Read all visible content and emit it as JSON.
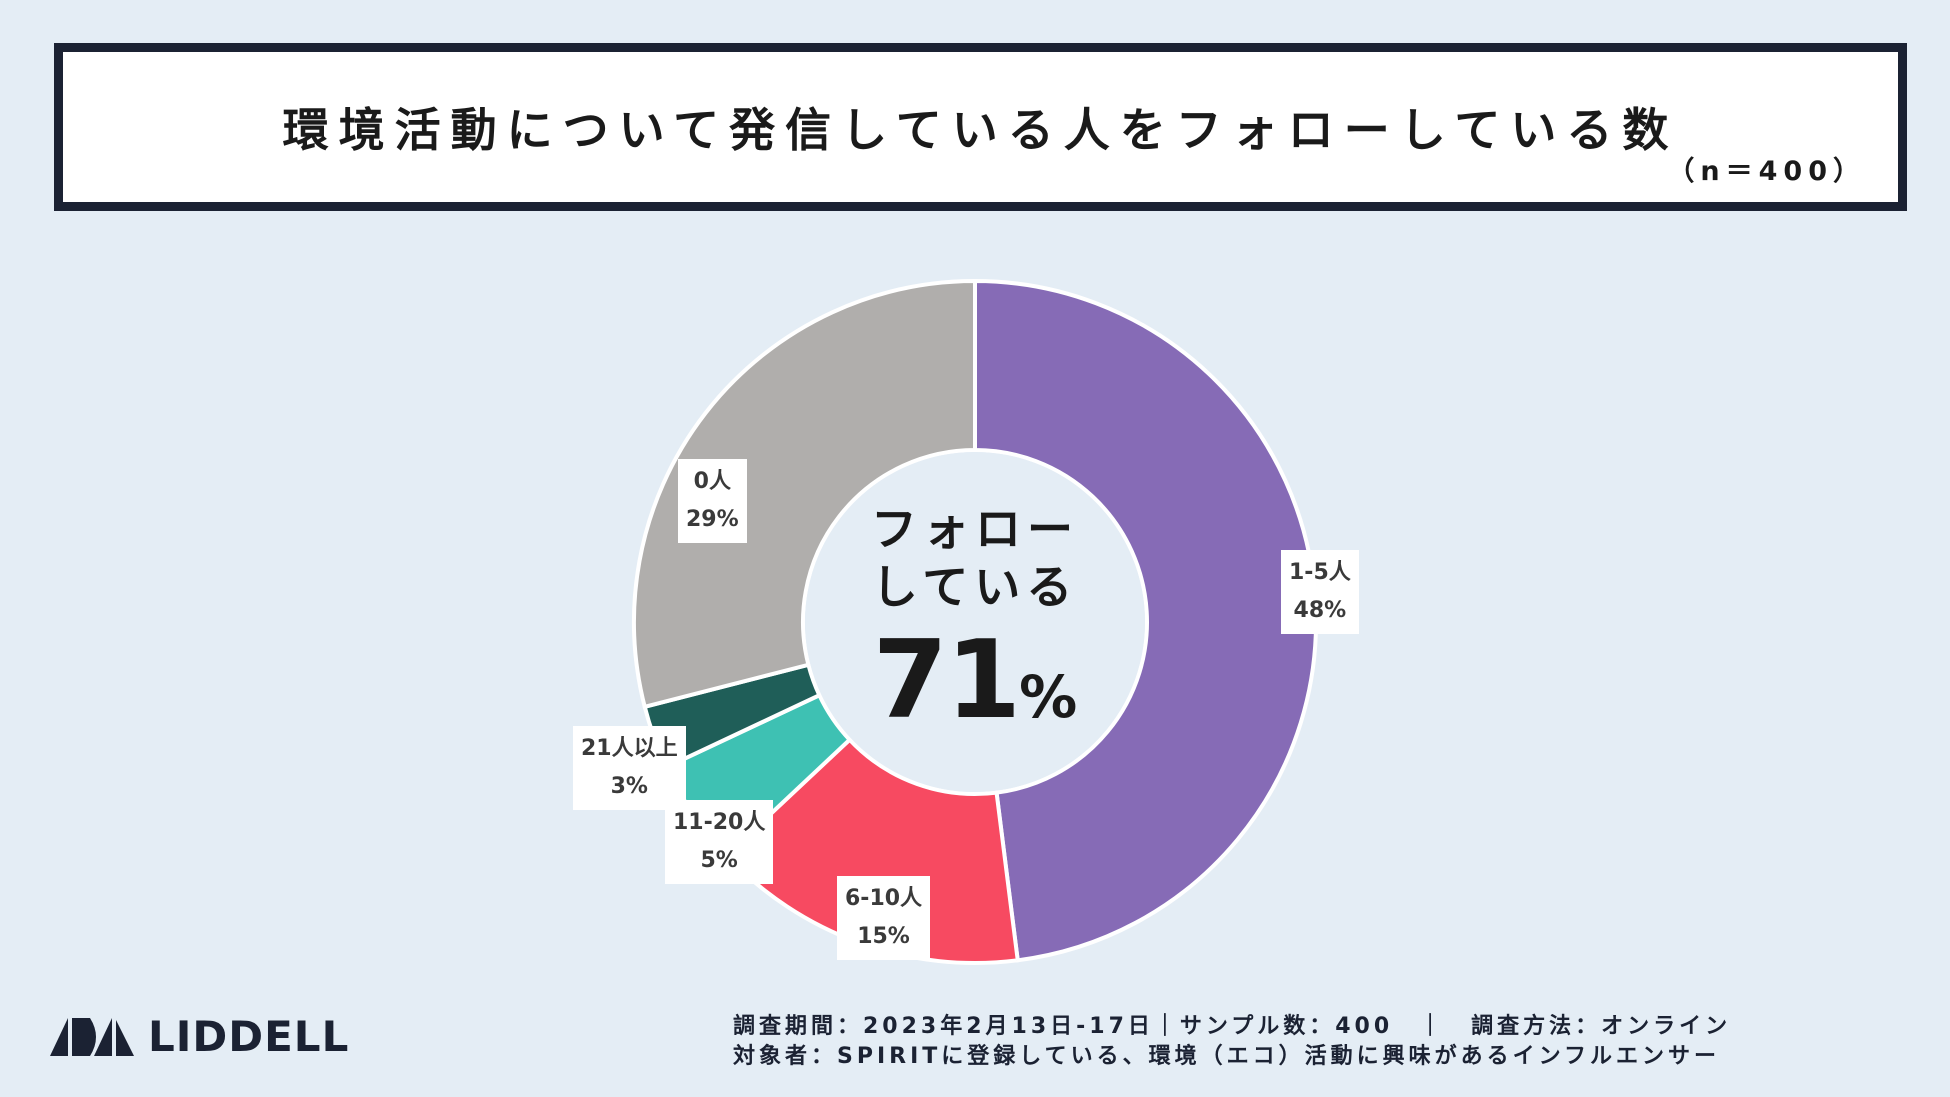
{
  "header": {
    "title": "環境活動について発信している人をフォローしている数",
    "sample": "（n＝400）"
  },
  "chart_data": {
    "type": "pie",
    "variant": "donut",
    "title": "環境活動について発信している人をフォローしている数",
    "categories": [
      "1-5人",
      "6-10人",
      "11-20人",
      "21人以上",
      "0人"
    ],
    "values": [
      48,
      15,
      5,
      3,
      29
    ],
    "value_labels": [
      "48%",
      "15%",
      "5%",
      "3%",
      "29%"
    ],
    "colors": [
      "#866bb6",
      "#f74a61",
      "#3ec1b3",
      "#1f5e58",
      "#b0aeac"
    ]
  },
  "center": {
    "line1": "フォロー",
    "line2": "している",
    "value": "71",
    "unit": "%"
  },
  "logo": {
    "name": "LIDDELL",
    "icon": "liddell-sail-icon"
  },
  "footer": {
    "line1": "調査期間：2023年2月13日-17日｜サンプル数：400　｜　調査方法：オンライン",
    "line2": "対象者：SPIRITに登録している、環境（エコ）活動に興味があるインフルエンサー"
  }
}
